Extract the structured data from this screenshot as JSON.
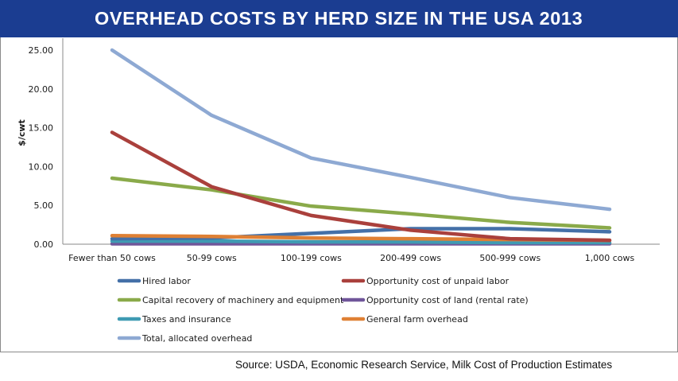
{
  "title": "OVERHEAD COSTS BY HERD SIZE IN THE USA 2013",
  "source": "Source: USDA, Economic Research Service, Milk Cost of Production Estimates",
  "colors": {
    "title_bg": "#1b3d91",
    "title_text": "#ffffff"
  },
  "chart_data": {
    "type": "line",
    "title": "OVERHEAD COSTS BY HERD SIZE IN THE USA 2013",
    "xlabel": "",
    "ylabel": "$/cwt",
    "ylim": [
      0,
      25
    ],
    "yticks": [
      0,
      5,
      10,
      15,
      20,
      25
    ],
    "ytick_labels": [
      "0.00",
      "5.00",
      "10.00",
      "15.00",
      "20.00",
      "25.00"
    ],
    "grid": false,
    "legend_position": "bottom",
    "categories": [
      "Fewer than 50 cows",
      "50-99 cows",
      "100-199 cows",
      "200-499 cows",
      "500-999 cows",
      "1,000 cows"
    ],
    "series": [
      {
        "name": "Hired labor",
        "color": "#4470a8",
        "values": [
          0.7,
          0.8,
          1.4,
          2.0,
          2.0,
          1.6
        ]
      },
      {
        "name": "Opportunity cost of unpaid labor",
        "color": "#aa403c",
        "values": [
          14.4,
          7.4,
          3.7,
          1.8,
          0.7,
          0.5
        ]
      },
      {
        "name": "Capital recovery of machinery and equipment",
        "color": "#8aaa4a",
        "values": [
          8.5,
          7.0,
          4.9,
          3.9,
          2.8,
          2.1
        ]
      },
      {
        "name": "Opportunity cost of land (rental rate)",
        "color": "#70569a",
        "values": [
          0.05,
          0.05,
          0.05,
          0.05,
          0.05,
          0.05
        ]
      },
      {
        "name": "Taxes and insurance",
        "color": "#3f9bb3",
        "values": [
          0.4,
          0.4,
          0.3,
          0.3,
          0.2,
          0.2
        ]
      },
      {
        "name": "General farm overhead",
        "color": "#df8034",
        "values": [
          1.1,
          1.0,
          0.8,
          0.7,
          0.6,
          0.5
        ]
      },
      {
        "name": "Total, allocated overhead",
        "color": "#8ea9d3",
        "values": [
          25.0,
          16.6,
          11.1,
          8.6,
          6.0,
          4.5
        ]
      }
    ]
  }
}
